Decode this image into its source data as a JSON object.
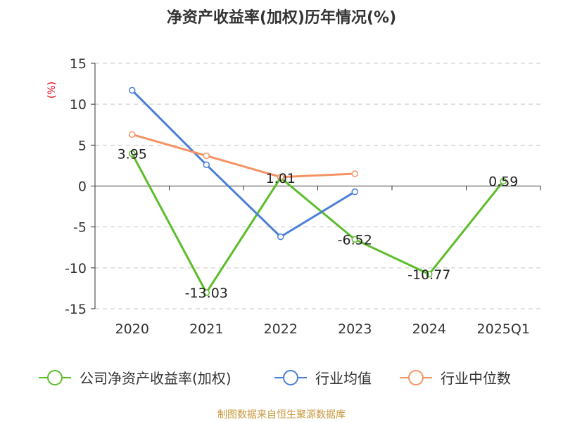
{
  "chart_data": {
    "type": "line",
    "title": "净资产收益率(加权)历年情况(%)",
    "ylabel": "(%)",
    "xlabel": "",
    "categories": [
      "2020",
      "2021",
      "2022",
      "2023",
      "2024",
      "2025Q1"
    ],
    "ylim": [
      -15,
      15
    ],
    "yticks": [
      15,
      10,
      5,
      0,
      -5,
      -10,
      -15
    ],
    "grid": "horizontal dashed",
    "legend_position": "bottom",
    "series": [
      {
        "name": "公司净资产收益率(加权)",
        "color": "#5cbd2a",
        "values": [
          3.95,
          -13.03,
          1.01,
          -6.52,
          -10.77,
          0.59
        ],
        "labels": [
          "3.95",
          "-13.03",
          "1.01",
          "-6.52",
          "-10.77",
          "0.59"
        ]
      },
      {
        "name": "行业均值",
        "color": "#4a7fd6",
        "values": [
          11.7,
          2.6,
          -6.2,
          -0.7,
          null,
          null
        ]
      },
      {
        "name": "行业中位数",
        "color": "#f59364",
        "values": [
          6.3,
          3.7,
          1.1,
          1.5,
          null,
          null
        ]
      }
    ]
  },
  "source_text": "制图数据来自恒生聚源数据库"
}
